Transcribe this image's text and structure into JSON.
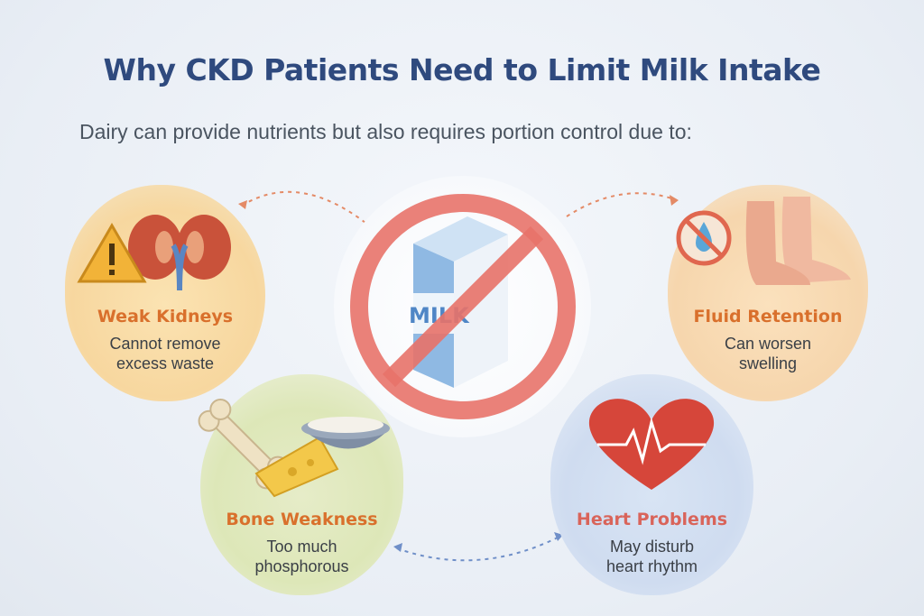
{
  "header": {
    "title": "Why CKD Patients Need to Limit Milk Intake",
    "subtitle": "Dairy can provide nutrients but also requires portion control due to:"
  },
  "center": {
    "carton_text": "MILK",
    "icon": "no-milk-icon",
    "prohibition_color": "#e8736a"
  },
  "cards": [
    {
      "id": "weak-kidneys",
      "label": "Weak Kidneys",
      "description": "Cannot remove\nexcess waste",
      "icon": "kidneys-warning-icon"
    },
    {
      "id": "fluid-retention",
      "label": "Fluid Retention",
      "description": "Can worsen\nswelling",
      "icon": "swollen-feet-no-water-icon"
    },
    {
      "id": "bone-weakness",
      "label": "Bone Weakness",
      "description": "Too much\nphosphorous",
      "icon": "bone-cheese-bowl-icon"
    },
    {
      "id": "heart-problems",
      "label": "Heart Problems",
      "description": "May disturb\nheart  rhythm",
      "icon": "heart-ecg-icon"
    }
  ],
  "colors": {
    "title": "#2f4a7e",
    "label_orange": "#d9702c",
    "label_red": "#d9645a"
  }
}
